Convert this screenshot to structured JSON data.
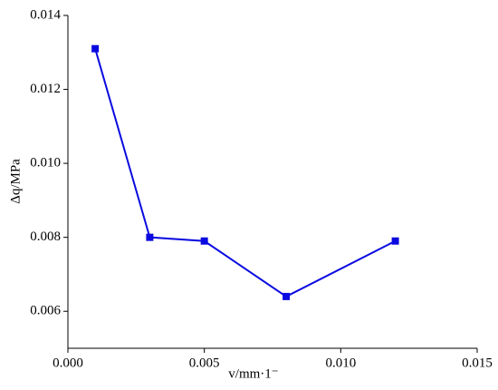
{
  "chart_data": {
    "type": "line",
    "x_label": "v/mm·1⁻",
    "y_label": "Δq/MPa",
    "x": [
      0.001,
      0.003,
      0.005,
      0.008,
      0.012
    ],
    "series": [
      {
        "name": "Δq",
        "color": "#0a0ae0",
        "values": [
          0.0131,
          0.008,
          0.0079,
          0.0064,
          0.0079
        ]
      }
    ],
    "xlim": [
      0,
      0.015
    ],
    "xticks": [
      {
        "value": 0,
        "label": "0.000"
      },
      0.005,
      {
        "value": 0.01,
        "label": "0.010"
      },
      0.015
    ],
    "ylim": [
      0.005,
      0.014
    ],
    "yticks": [
      0.006,
      0.008,
      {
        "value": 0.01,
        "label": "0.010"
      },
      0.012,
      0.014
    ]
  }
}
